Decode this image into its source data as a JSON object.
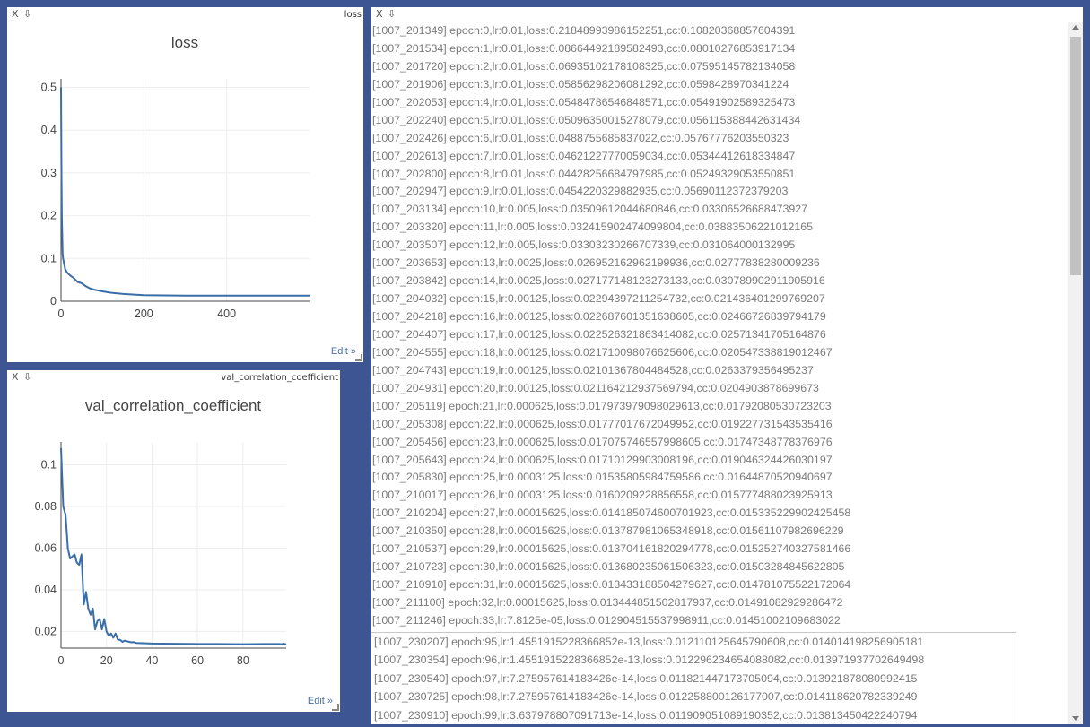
{
  "panes": [
    {
      "label": "loss",
      "edit_label": "Edit »",
      "chart_data": {
        "type": "line",
        "title": "loss",
        "xlabel": "",
        "ylabel": "",
        "xlim": [
          0,
          600
        ],
        "ylim": [
          0,
          0.52
        ],
        "x_ticks": [
          0,
          200,
          400
        ],
        "y_ticks": [
          0,
          0.1,
          0.2,
          0.3,
          0.4,
          0.5
        ],
        "x_tick_labels": [
          "0",
          "200",
          "400"
        ],
        "y_tick_labels": [
          "0",
          "0.1",
          "0.2",
          "0.3",
          "0.4",
          "0.5"
        ],
        "grid": true,
        "legend": "none",
        "color": "#3a6ea8",
        "series": [
          {
            "x": [
              0,
              1,
              2,
              3,
              4,
              5,
              6,
              7,
              8,
              9,
              10,
              12,
              14,
              17,
              20,
              25,
              30,
              35,
              40,
              50,
              60,
              70,
              80,
              100,
              120,
              150,
              200,
              300,
              400,
              500,
              600
            ],
            "y": [
              0.5,
              0.3,
              0.2,
              0.15,
              0.11,
              0.1,
              0.095,
              0.09,
              0.085,
              0.08,
              0.075,
              0.072,
              0.068,
              0.065,
              0.062,
              0.058,
              0.055,
              0.05,
              0.045,
              0.042,
              0.035,
              0.03,
              0.027,
              0.023,
              0.02,
              0.017,
              0.014,
              0.013,
              0.013,
              0.013,
              0.013
            ]
          }
        ]
      }
    },
    {
      "label": "val_correlation_coefficient",
      "edit_label": "Edit »",
      "chart_data": {
        "type": "line",
        "title": "val_correlation_coefficient",
        "xlabel": "",
        "ylabel": "",
        "xlim": [
          0,
          99
        ],
        "ylim": [
          0.012,
          0.111
        ],
        "x_ticks": [
          0,
          20,
          40,
          60,
          80
        ],
        "y_ticks": [
          0.02,
          0.04,
          0.06,
          0.08,
          0.1
        ],
        "x_tick_labels": [
          "0",
          "20",
          "40",
          "60",
          "80"
        ],
        "y_tick_labels": [
          "0.02",
          "0.04",
          "0.06",
          "0.08",
          "0.1"
        ],
        "grid": true,
        "legend": "none",
        "color": "#3a6ea8",
        "series": [
          {
            "x": [
              0,
              1,
              2,
              3,
              4,
              5,
              6,
              7,
              8,
              9,
              10,
              11,
              12,
              13,
              14,
              15,
              16,
              17,
              18,
              19,
              20,
              21,
              22,
              23,
              24,
              25,
              26,
              27,
              28,
              29,
              30,
              31,
              32,
              33,
              40,
              50,
              60,
              70,
              80,
              90,
              95,
              96,
              97,
              98,
              99
            ],
            "y": [
              0.108,
              0.08,
              0.076,
              0.06,
              0.055,
              0.056,
              0.057,
              0.053,
              0.052,
              0.057,
              0.033,
              0.039,
              0.031,
              0.028,
              0.031,
              0.021,
              0.025,
              0.026,
              0.021,
              0.026,
              0.02,
              0.018,
              0.019,
              0.017,
              0.019,
              0.016,
              0.016,
              0.015,
              0.0156,
              0.0153,
              0.015,
              0.0148,
              0.0149,
              0.0145,
              0.0142,
              0.0141,
              0.014,
              0.014,
              0.0139,
              0.014,
              0.014,
              0.014,
              0.0139,
              0.0141,
              0.0138
            ]
          }
        ]
      }
    }
  ],
  "log": {
    "lines": [
      "[1007_201349] epoch:0,lr:0.01,loss:0.21848993986152251,cc:0.10820368857604391",
      "[1007_201534] epoch:1,lr:0.01,loss:0.08664492189582493,cc:0.08010276853917134",
      "[1007_201720] epoch:2,lr:0.01,loss:0.06935102178108325,cc:0.07595145782134058",
      "[1007_201906] epoch:3,lr:0.01,loss:0.05856298206081292,cc:0.0598428970341224",
      "[1007_202053] epoch:4,lr:0.01,loss:0.05484786546848571,cc:0.05491902589325473",
      "[1007_202240] epoch:5,lr:0.01,loss:0.05096350015278079,cc:0.05611538844263143​4",
      "[1007_202426] epoch:6,lr:0.01,loss:0.0488755685837022,cc:0.05767776203550323",
      "[1007_202613] epoch:7,lr:0.01,loss:0.04621227770059034,cc:0.05344412618334847",
      "[1007_202800] epoch:8,lr:0.01,loss:0.04428256684797985,cc:0.05249329053550851",
      "[1007_202947] epoch:9,lr:0.01,loss:0.0454220329882935,cc:0.05690112372379203",
      "[1007_203134] epoch:10,lr:0.005,loss:0.03509612044680846,cc:0.03306526688473927",
      "[1007_203320] epoch:11,lr:0.005,loss:0.032415902474099804,cc:0.03883506221012165",
      "[1007_203507] epoch:12,lr:0.005,loss:0.03303230266707339,cc:0.031064000132995",
      "[1007_203653] epoch:13,lr:0.0025,loss:0.026952162962199936,cc:0.02777838280009236",
      "[1007_203842] epoch:14,lr:0.0025,loss:0.02717714812327313​3,cc:0.030789902911905916",
      "[1007_204032] epoch:15,lr:0.00125,loss:0.02294397211254732,cc:0.021436401299769207",
      "[1007_204218] epoch:16,lr:0.00125,loss:0.022687601351638605,cc:0.02466726839794179",
      "[1007_204407] epoch:17,lr:0.00125,loss:0.022526321863414082,cc:0.02571341705164876",
      "[1007_204555] epoch:18,lr:0.00125,loss:0.021710098076625606,cc:0.020547338819012467",
      "[1007_204743] epoch:19,lr:0.00125,loss:0.02101367804484528,cc:0.0263379356495237",
      "[1007_204931] epoch:20,lr:0.00125,loss:0.021164212937569794,cc:0.0204903878699673",
      "[1007_205119] epoch:21,lr:0.000625,loss:0.017973979098029613,cc:0.017920805​30723203",
      "[1007_205308] epoch:22,lr:0.000625,loss:0.01777017672049952,cc:0.019227731543535416",
      "[1007_205456] epoch:23,lr:0.000625,loss:0.017075746557998605,cc:0.01747348778376976",
      "[1007_205643] epoch:24,lr:0.000625,loss:0.017101299030​08196,cc:0.019046324426030197",
      "[1007_205830] epoch:25,lr:0.0003125,loss:0.01535805984759586,cc:0.01644870520940697",
      "[1007_210017] epoch:26,lr:0.0003125,loss:0.0160209228856558,cc:0.015777488023925913",
      "[1007_210204] epoch:27,lr:0.00015625,loss:0.014185074600701923,cc:0.015335229902425458",
      "[1007_210350] epoch:28,lr:0.00015625,loss:0.013787981065348918,cc:0.01561107982696229",
      "[1007_210537] epoch:29,lr:0.00015625,loss:0.013704161820294778,cc:0.015252740327581466",
      "[1007_210723] epoch:30,lr:0.00015625,loss:0.013680235061506323,cc:0.015032848456228​05",
      "[1007_210910] epoch:31,lr:0.00015625,loss:0.013433188504279627,cc:0.014781075522172064",
      "[1007_211100] epoch:32,lr:0.00015625,loss:0.013444851502817937,cc:0.01491082929286472",
      "[1007_211246] epoch:33,lr:7.8125e-05,loss:0.012904515537998911,cc:0.01451002109683022"
    ],
    "tail_lines": [
      "[1007_230207] epoch:95,lr:1.4551915228366852e-13,loss:0.012110125645790608,cc:0.014014198256905181",
      "[1007_230354] epoch:96,lr:1.4551915228366852e-13,loss:0.012296234654088082,cc:0.013971937702649498",
      "[1007_230540] epoch:97,lr:7.275957614183426e-14,loss:0.011821447173705094,cc:0.013921878080992415",
      "[1007_230725] epoch:98,lr:7.275957614183426e-14,loss:0.012258800126177007,cc:0.014118620782339249",
      "[1007_230910] epoch:99,lr:3.637978807091713e-14,loss:0.011909051089190352,cc:0.013813450422240794"
    ]
  }
}
